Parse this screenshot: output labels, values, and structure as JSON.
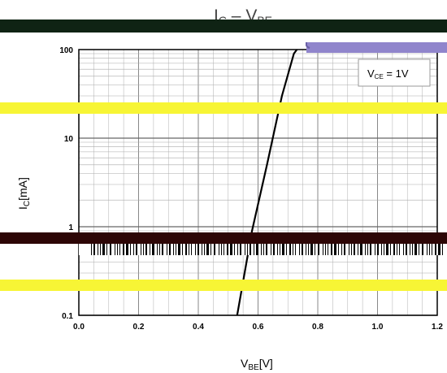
{
  "chart_data": {
    "type": "line",
    "title": {
      "main": "I",
      "sub1": "C",
      "mid": " – V",
      "sub2": "BE"
    },
    "xlabel": {
      "main": "V",
      "sub": "BE",
      "unit": "[V]"
    },
    "ylabel": {
      "main": "I",
      "sub": "C",
      "unit": "[mA]"
    },
    "xlim": [
      0.0,
      1.2
    ],
    "ylim": [
      0.1,
      100
    ],
    "yscale": "log",
    "grid": true,
    "x_ticks": [
      "0.0",
      "0.2",
      "0.4",
      "0.6",
      "0.8",
      "1.0",
      "1.2"
    ],
    "y_ticks": [
      "0.1",
      "1",
      "10",
      "100"
    ],
    "legend": {
      "main": "V",
      "sub": "CE",
      "value": " = 1V",
      "placement": "top-right"
    },
    "series": [
      {
        "color": "#000000",
        "x": [
          0.53,
          0.58,
          0.63,
          0.68,
          0.72,
          0.73
        ],
        "y": [
          0.1,
          0.9,
          5.0,
          30,
          90,
          100
        ]
      }
    ]
  },
  "overlays": {
    "colors": {
      "dark_band": "#0f2314",
      "maroon_band": "#2d0606",
      "yellow_band": "#f7f535",
      "purple_box": "#9085cc"
    }
  }
}
